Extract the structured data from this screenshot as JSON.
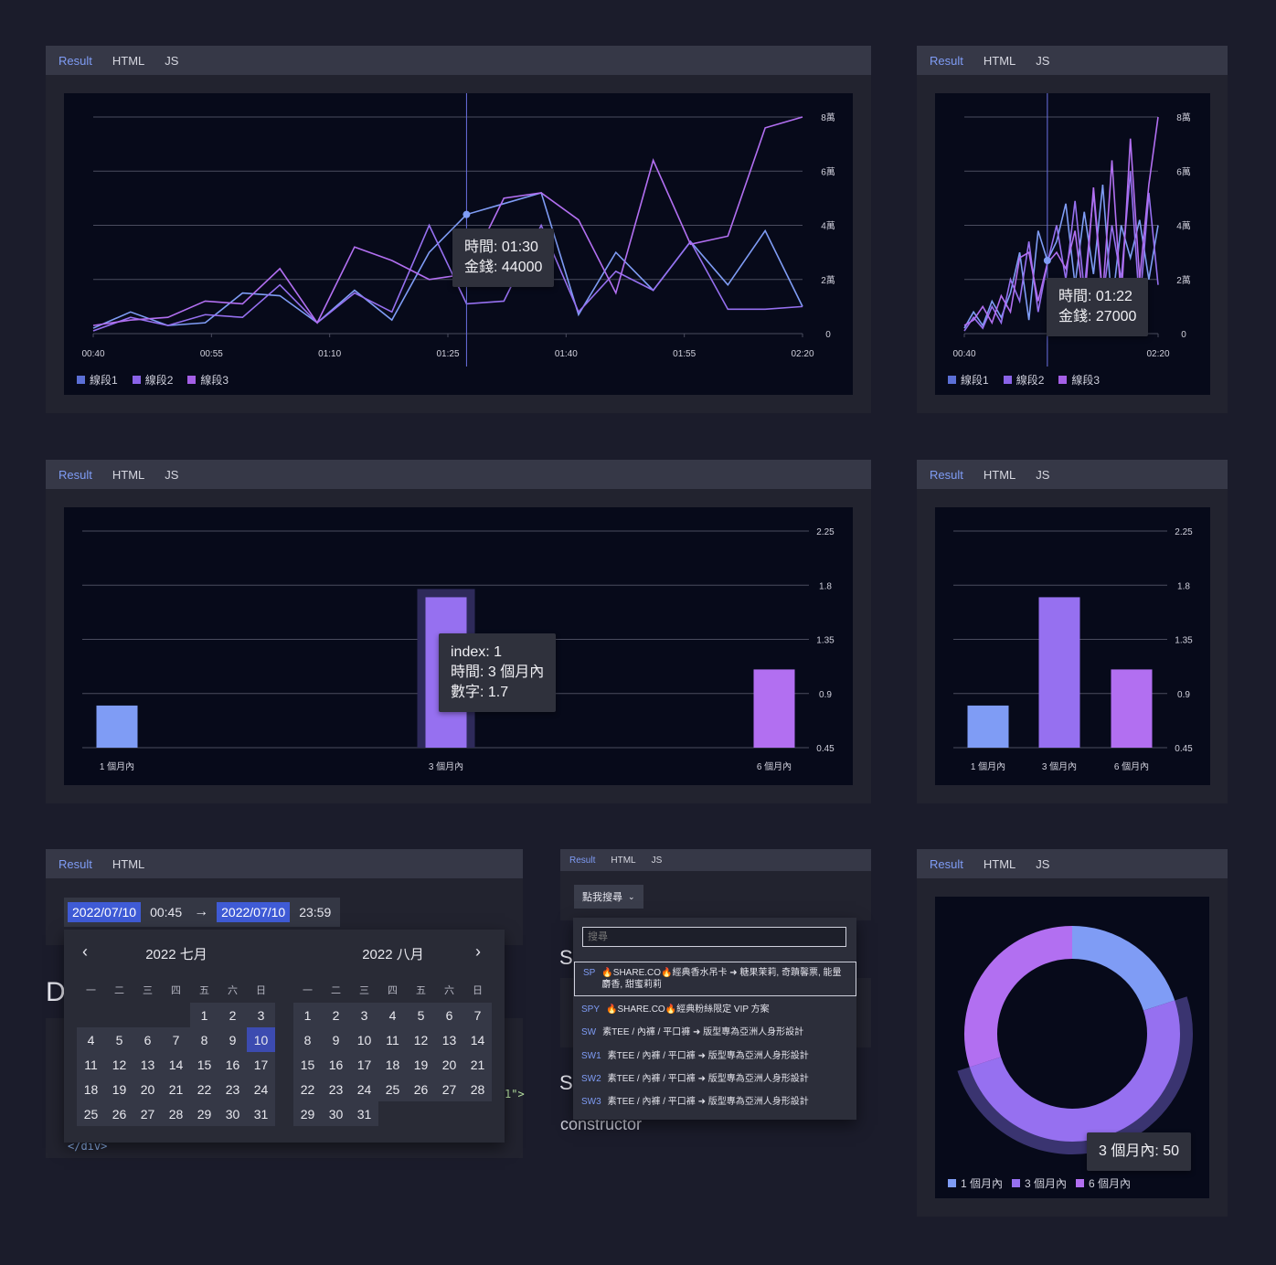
{
  "tabs": {
    "result": "Result",
    "html": "HTML",
    "js": "JS"
  },
  "colors": {
    "series1": "#7f9cf5",
    "series2": "#9670f0",
    "series3": "#b26ff1",
    "accent": "#7f9cf5",
    "bg": "#1b1c2b",
    "panel": "#070a1a"
  },
  "line_chart_large": {
    "tooltip_time": "時間: 01:30",
    "tooltip_money": "金錢: 44000",
    "legend": [
      "線段1",
      "線段2",
      "線段3"
    ]
  },
  "line_chart_small": {
    "tooltip_time": "時間: 01:22",
    "tooltip_money": "金錢: 27000",
    "legend": [
      "線段1",
      "線段2",
      "線段3"
    ]
  },
  "bar_chart_large": {
    "tooltip_index": "index: 1",
    "tooltip_time": "時間: 3 個月內",
    "tooltip_num": "數字: 1.7"
  },
  "donut": {
    "tooltip": "3 個月內: 50",
    "legend": [
      "1 個月內",
      "3 個月內",
      "6 個月內"
    ]
  },
  "datepicker": {
    "start_date": "2022/07/10",
    "start_time": "00:45",
    "arrow": "→",
    "end_date": "2022/07/10",
    "end_time": "23:59",
    "left_title": "2022 七月",
    "right_title": "2022 八月",
    "weekdays": [
      "一",
      "二",
      "三",
      "四",
      "五",
      "六",
      "日"
    ],
    "selected_day": "10",
    "bg_letter": "D",
    "code_tail": "1\">",
    "code_close": "</div>"
  },
  "search_dropdown": {
    "button_label": "點我搜尋",
    "search_placeholder": "搜尋",
    "items": [
      {
        "code": "SP",
        "text": "🔥SHARE.CO🔥經典香水吊卡 ➜ 糖果茉莉, 奇蹟馨票, 能量麝香, 甜蜜莉莉"
      },
      {
        "code": "SPY",
        "text": "🔥SHARE.CO🔥經典粉絲限定 VIP 方案"
      },
      {
        "code": "SW",
        "text": "素TEE / 內褲 / 平口褲 ➜ 版型專為亞洲人身形設計"
      },
      {
        "code": "SW1",
        "text": "素TEE / 內褲 / 平口褲 ➜ 版型專為亞洲人身形設計"
      },
      {
        "code": "SW2",
        "text": "素TEE / 內褲 / 平口褲 ➜ 版型專為亞洲人身形設計"
      },
      {
        "code": "SW3",
        "text": "素TEE / 內褲 / 平口褲 ➜ 版型專為亞洲人身形設計"
      }
    ],
    "bg_letter_1": "S",
    "bg_letter_2": "S",
    "bg_word": "constructor"
  },
  "chart_data": [
    {
      "type": "line",
      "x": [
        "00:40",
        "00:45",
        "00:50",
        "00:55",
        "01:00",
        "01:05",
        "01:10",
        "01:15",
        "01:20",
        "01:25",
        "01:30",
        "01:35",
        "01:40",
        "01:45",
        "01:50",
        "01:55",
        "02:00",
        "02:05",
        "02:10",
        "02:15"
      ],
      "xticks": [
        "00:40",
        "00:55",
        "01:10",
        "01:25",
        "01:40",
        "01:55",
        "02:20"
      ],
      "yticks": [
        "0",
        "2萬",
        "4萬",
        "6萬",
        "8萬"
      ],
      "ylim": [
        0,
        80000
      ],
      "series": [
        {
          "name": "線段1",
          "values": [
            2000,
            8000,
            3000,
            4000,
            15000,
            14000,
            4000,
            16000,
            5000,
            30000,
            44000,
            48000,
            52000,
            7000,
            30000,
            16000,
            34000,
            18000,
            38000,
            10000
          ]
        },
        {
          "name": "線段2",
          "values": [
            1000,
            6000,
            3000,
            7000,
            6000,
            18000,
            4000,
            15000,
            8000,
            40000,
            11000,
            12000,
            40000,
            8000,
            23000,
            16000,
            34000,
            9000,
            9000,
            10000
          ]
        },
        {
          "name": "線段3",
          "values": [
            3000,
            5000,
            6000,
            12000,
            11000,
            24000,
            4000,
            32000,
            27000,
            20000,
            22000,
            50000,
            52000,
            42000,
            15000,
            64000,
            33000,
            36000,
            76000,
            80000
          ]
        }
      ]
    },
    {
      "type": "line",
      "x": [
        "00:40",
        "00:45",
        "00:50",
        "00:55",
        "01:00",
        "01:05",
        "01:10",
        "01:15",
        "01:20",
        "01:22",
        "01:25",
        "01:30",
        "01:35",
        "01:40",
        "01:45",
        "01:50",
        "01:55",
        "02:00",
        "02:05",
        "02:10",
        "02:15",
        "02:20"
      ],
      "xticks": [
        "00:40",
        "02:20"
      ],
      "yticks": [
        "0",
        "2萬",
        "4萬",
        "6萬",
        "8萬"
      ],
      "ylim": [
        0,
        80000
      ],
      "series": [
        {
          "name": "線段1",
          "values": [
            2000,
            8000,
            3000,
            12000,
            6000,
            15000,
            30000,
            5000,
            38000,
            27000,
            34000,
            48000,
            18000,
            45000,
            22000,
            55000,
            10000,
            40000,
            28000,
            42000,
            20000,
            40000
          ]
        },
        {
          "name": "線段2",
          "values": [
            1000,
            6000,
            2000,
            10000,
            4000,
            20000,
            12000,
            34000,
            8000,
            26000,
            40000,
            20000,
            49000,
            16000,
            52000,
            12000,
            40000,
            20000,
            60000,
            10000,
            52000,
            18000
          ]
        },
        {
          "name": "線段3",
          "values": [
            3000,
            5000,
            10000,
            4000,
            14000,
            8000,
            28000,
            30000,
            12000,
            26000,
            30000,
            24000,
            38000,
            10000,
            54000,
            14000,
            64000,
            12000,
            72000,
            20000,
            55000,
            80000
          ]
        }
      ]
    },
    {
      "type": "bar",
      "categories": [
        "1 個月內",
        "3 個月內",
        "6 個月內"
      ],
      "values": [
        0.8,
        1.7,
        1.1
      ],
      "yticks": [
        "0.45",
        "0.9",
        "1.35",
        "1.8",
        "2.25"
      ],
      "ylim": [
        0.45,
        2.25
      ]
    },
    {
      "type": "bar",
      "categories": [
        "1 個月內",
        "3 個月內",
        "6 個月內"
      ],
      "values": [
        0.8,
        1.7,
        1.1
      ],
      "yticks": [
        "0.45",
        "0.9",
        "1.35",
        "1.8",
        "2.25"
      ],
      "ylim": [
        0.45,
        2.25
      ]
    },
    {
      "type": "pie",
      "categories": [
        "1 個月內",
        "3 個月內",
        "6 個月內"
      ],
      "values": [
        20,
        50,
        30
      ]
    }
  ]
}
